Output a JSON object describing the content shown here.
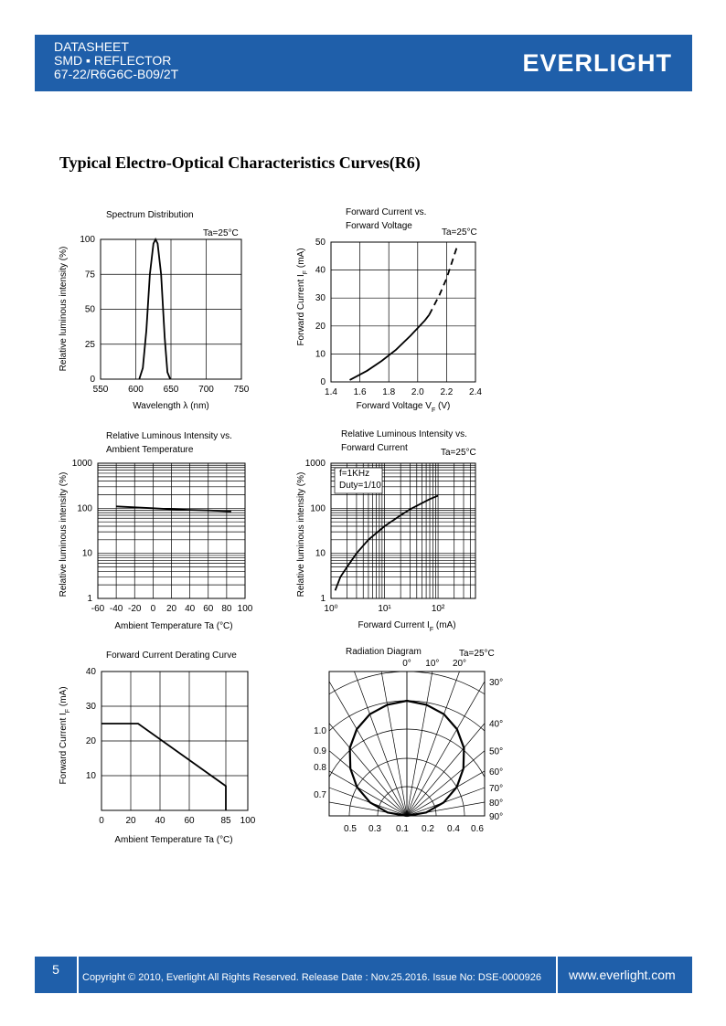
{
  "header": {
    "lines": [
      "DATASHEET",
      "SMD ▪ REFLECTOR",
      "67-22/R6G6C-B09/2T"
    ],
    "logo": "EVERLIGHT"
  },
  "section_title": "Typical Electro-Optical Characteristics Curves(R6)",
  "chart_data": [
    {
      "type": "line",
      "title": [
        "Spectrum Distribution"
      ],
      "annotations": [
        "Ta=25°C"
      ],
      "x_label": "Wavelength  λ (nm)",
      "y_label": "Relative luminous intensity (%)",
      "xlim": [
        550,
        750
      ],
      "xticks": [
        550,
        600,
        650,
        700,
        750
      ],
      "ylim": [
        0,
        100
      ],
      "yticks": [
        0,
        25,
        50,
        75,
        100
      ],
      "grid": true,
      "x": [
        605,
        610,
        615,
        620,
        625,
        628,
        631,
        636,
        641,
        645,
        649
      ],
      "series": [
        {
          "color": "#000000",
          "values": [
            0,
            8,
            35,
            75,
            97,
            100,
            97,
            75,
            30,
            5,
            0
          ]
        }
      ]
    },
    {
      "type": "line",
      "title": [
        "Forward Current vs.",
        "Forward Voltage"
      ],
      "annotations": [
        "Ta=25°C"
      ],
      "x_label": [
        "Forward Voltage   V",
        "F",
        " (V)"
      ],
      "y_label": [
        "Forward Current   I",
        "F",
        "  (mA)"
      ],
      "xlim": [
        1.4,
        2.4
      ],
      "xticks": [
        1.4,
        1.6,
        1.8,
        {
          "value": 2,
          "label": "2.0"
        },
        2.2,
        2.4
      ],
      "ylim": [
        0,
        50
      ],
      "yticks": [
        0,
        10,
        20,
        30,
        40,
        50
      ],
      "grid": true,
      "x": [
        1.53,
        1.65,
        1.75,
        1.85,
        1.95,
        2.05,
        2.08,
        2.15,
        2.2,
        2.27
      ],
      "series": [
        {
          "color": "#000000",
          "values": [
            0.7,
            4,
            7.5,
            11.5,
            16.5,
            22,
            24,
            null,
            null,
            null
          ]
        },
        {
          "color": "#000000",
          "dashed": true,
          "values": [
            null,
            null,
            null,
            null,
            null,
            null,
            24,
            31,
            37,
            48
          ]
        }
      ]
    },
    {
      "type": "line",
      "title": [
        "Relative Luminous Intensity vs.",
        "Ambient Temperature"
      ],
      "x_label": "Ambient Temperature Ta (°C)",
      "y_label": "Relative luminous intensity (%)",
      "xlim": [
        -60,
        100
      ],
      "xticks": [
        -60,
        -40,
        -20,
        0,
        20,
        40,
        60,
        80,
        100
      ],
      "ylim": [
        1,
        1000
      ],
      "yticks": [
        1,
        10,
        100,
        1000
      ],
      "log_y": true,
      "grid": true,
      "x": [
        -40,
        -20,
        0,
        20,
        40,
        60,
        85
      ],
      "series": [
        {
          "color": "#000000",
          "values": [
            110,
            105,
            100,
            95,
            92,
            90,
            85
          ]
        }
      ]
    },
    {
      "type": "line",
      "title": [
        "Relative Luminous Intensity vs.",
        "Forward Current"
      ],
      "annotations": [
        "Ta=25°C",
        "f=1KHz",
        "Duty=1/10"
      ],
      "x_label": [
        "Forward Current  I",
        "F",
        " (mA)"
      ],
      "y_label": "Relative luminous intensity (%)",
      "xlim": [
        1,
        500
      ],
      "xticks": [
        {
          "value": 1,
          "label": "10⁰"
        },
        {
          "value": 10,
          "label": "10¹"
        },
        {
          "value": 100,
          "label": "10²"
        }
      ],
      "ylim": [
        1,
        1000
      ],
      "yticks": [
        1,
        10,
        100,
        1000
      ],
      "log_x": true,
      "log_y": true,
      "grid": true,
      "x": [
        1.2,
        1.5,
        2,
        3,
        5,
        10,
        20,
        30,
        50,
        70,
        100
      ],
      "series": [
        {
          "color": "#000000",
          "values": [
            1.5,
            3,
            5,
            10,
            20,
            40,
            70,
            95,
            130,
            160,
            190
          ]
        }
      ]
    },
    {
      "type": "line",
      "title": [
        "Forward Current Derating Curve"
      ],
      "x_label": "Ambient Temperature Ta (°C)",
      "y_label": [
        "Forward Current   I",
        "F",
        "  (mA)"
      ],
      "xlim": [
        0,
        100
      ],
      "xticks": [
        0,
        20,
        40,
        60,
        85,
        100
      ],
      "ylim": [
        0,
        40
      ],
      "yticks": [
        10,
        20,
        30,
        40
      ],
      "grid": true,
      "x": [
        0,
        25,
        85,
        85
      ],
      "series": [
        {
          "color": "#000000",
          "values": [
            25,
            25,
            7,
            0
          ]
        }
      ]
    },
    {
      "type": "polar",
      "title": [
        "Radiation Diagram"
      ],
      "annotations": [
        "Ta=25°C"
      ],
      "thetaticks": [
        {
          "value": 0,
          "label": "0°"
        },
        {
          "value": 10,
          "label": "10°"
        },
        {
          "value": 20,
          "label": "20°"
        },
        {
          "value": 30,
          "label": "30°"
        },
        {
          "value": 40,
          "label": "40°"
        },
        {
          "value": 50,
          "label": "50°"
        },
        {
          "value": 60,
          "label": "60°"
        },
        {
          "value": 70,
          "label": "70°"
        },
        {
          "value": 80,
          "label": "80°"
        },
        {
          "value": 90,
          "label": "90°"
        }
      ],
      "rticks": [
        {
          "value": 1,
          "label": "1.0"
        },
        0.9,
        0.8,
        0.7
      ],
      "bottom_labels": [
        0.5,
        0.3,
        0.1,
        0.2,
        0.4,
        0.6
      ],
      "angles": [
        0,
        10,
        20,
        30,
        40,
        50,
        60,
        70,
        80,
        90
      ],
      "values": [
        1,
        0.98,
        0.94,
        0.87,
        0.77,
        0.64,
        0.5,
        0.34,
        0.17,
        0
      ],
      "color": "#000000"
    }
  ],
  "footer": {
    "page": "5",
    "copyright": "Copyright © 2010, Everlight All Rights Reserved. Release Date : Nov.25.2016. Issue No: DSE-0000926",
    "url": "www.everlight.com"
  }
}
